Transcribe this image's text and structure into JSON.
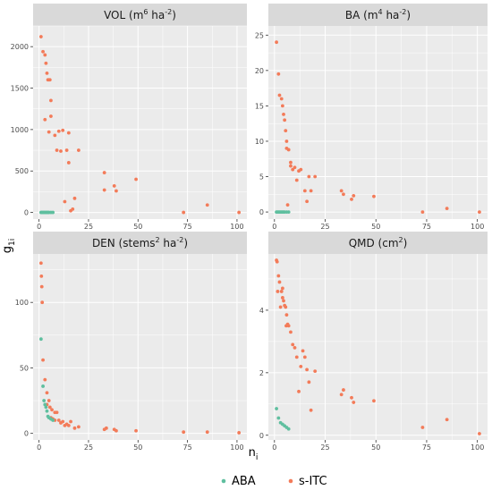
{
  "chart_data": [
    {
      "type": "scatter",
      "panel_title": [
        "VOL (m",
        "6",
        " ha",
        "-2",
        ")"
      ],
      "xlim": [
        -3,
        105
      ],
      "ylim": [
        -80,
        2250
      ],
      "xticks": [
        0,
        25,
        50,
        75,
        100
      ],
      "yticks": [
        0,
        500,
        1000,
        1500,
        2000
      ],
      "series": [
        {
          "name": "ABA",
          "x": [
            1,
            1.5,
            2,
            2.5,
            3,
            3.5,
            4,
            4.5,
            5,
            6,
            7
          ],
          "y": [
            0,
            0,
            0,
            0,
            0,
            0,
            0,
            0,
            0,
            0,
            0
          ]
        },
        {
          "name": "s-ITC",
          "x": [
            1,
            2,
            3,
            3.5,
            4,
            4.5,
            5,
            5.5,
            3,
            6,
            6,
            5,
            8,
            9,
            10,
            11,
            12,
            13,
            14,
            15,
            15,
            16,
            17,
            18,
            20,
            33,
            33,
            38,
            39,
            49,
            73,
            85,
            101
          ],
          "y": [
            2120,
            1940,
            1900,
            1800,
            1680,
            1600,
            1600,
            1600,
            1120,
            1350,
            1160,
            970,
            930,
            750,
            980,
            740,
            990,
            130,
            750,
            600,
            960,
            20,
            40,
            170,
            750,
            480,
            270,
            320,
            260,
            400,
            0,
            90,
            0
          ]
        }
      ]
    },
    {
      "type": "scatter",
      "panel_title": [
        "BA (m",
        "4",
        " ha",
        "-2",
        ")"
      ],
      "xlim": [
        -3,
        105
      ],
      "ylim": [
        -1,
        26.3
      ],
      "xticks": [
        0,
        25,
        50,
        75,
        100
      ],
      "yticks": [
        0,
        5,
        10,
        15,
        20,
        25
      ],
      "series": [
        {
          "name": "ABA",
          "x": [
            1,
            1.5,
            2,
            2.5,
            3,
            3.5,
            4,
            4.5,
            5,
            6,
            7
          ],
          "y": [
            0,
            0,
            0,
            0,
            0,
            0,
            0,
            0,
            0,
            0,
            0
          ]
        },
        {
          "name": "s-ITC",
          "x": [
            1,
            2,
            2.5,
            3.5,
            4,
            4.5,
            5,
            5.5,
            6,
            6,
            6.5,
            7,
            8,
            8,
            9,
            10,
            11,
            12,
            13,
            15,
            16,
            17,
            18,
            20,
            33,
            34,
            38,
            39,
            49,
            73,
            85,
            101
          ],
          "y": [
            24,
            19.5,
            16.5,
            16,
            15,
            13.8,
            13,
            11.5,
            10,
            9,
            1,
            8.8,
            7,
            6.5,
            6,
            6.3,
            4.5,
            5.8,
            6,
            3,
            1.5,
            5,
            3,
            5,
            3,
            2.5,
            1.8,
            2.3,
            2.2,
            0,
            0.5,
            0
          ]
        }
      ]
    },
    {
      "type": "scatter",
      "panel_title": [
        "DEN (stems",
        "2",
        " ha",
        "-2",
        ")"
      ],
      "xlim": [
        -3,
        105
      ],
      "ylim": [
        -5,
        137
      ],
      "xticks": [
        0,
        25,
        50,
        75,
        100
      ],
      "yticks": [
        0,
        50,
        100
      ],
      "series": [
        {
          "name": "ABA",
          "x": [
            1,
            2,
            2.5,
            3,
            3.5,
            4,
            4.5,
            5,
            6,
            7
          ],
          "y": [
            72,
            36,
            25,
            22,
            20,
            17,
            13,
            12,
            11,
            10
          ]
        },
        {
          "name": "s-ITC",
          "x": [
            1,
            1.2,
            1.4,
            1.6,
            2,
            3,
            4,
            4,
            5,
            5.5,
            6,
            6.5,
            7,
            8,
            8,
            9,
            10,
            11,
            12,
            13,
            14,
            15,
            16,
            18,
            20,
            33,
            34,
            38,
            39,
            49,
            73,
            85,
            101
          ],
          "y": [
            130,
            120,
            112,
            100,
            56,
            41,
            31,
            22,
            25,
            20,
            12,
            18,
            11,
            16,
            10,
            16,
            10,
            8,
            9,
            6,
            7,
            6,
            9,
            4,
            5,
            3,
            4,
            3,
            2,
            2,
            1,
            1,
            0.5
          ]
        }
      ]
    },
    {
      "type": "scatter",
      "panel_title": [
        "QMD (cm",
        "2",
        ")",
        "",
        ""
      ],
      "xlim": [
        -3,
        105
      ],
      "ylim": [
        -0.15,
        5.8
      ],
      "xticks": [
        0,
        25,
        50,
        75,
        100
      ],
      "yticks": [
        0,
        2,
        4
      ],
      "series": [
        {
          "name": "ABA",
          "x": [
            1,
            2,
            3,
            4,
            5,
            6,
            7
          ],
          "y": [
            0.85,
            0.55,
            0.4,
            0.35,
            0.3,
            0.25,
            0.2
          ]
        },
        {
          "name": "s-ITC",
          "x": [
            1,
            1.3,
            1.6,
            2,
            2.5,
            3,
            3.5,
            4,
            4,
            4.5,
            5,
            5.5,
            5.8,
            6,
            6.5,
            7,
            8,
            9,
            10,
            11,
            12,
            13,
            14,
            15,
            16,
            17,
            18,
            20,
            33,
            34,
            38,
            39,
            49,
            73,
            85,
            101
          ],
          "y": [
            5.6,
            5.55,
            4.6,
            5.1,
            4.9,
            4.1,
            4.6,
            4.7,
            4.4,
            4.3,
            4.15,
            4.1,
            3.5,
            3.85,
            3.55,
            3.5,
            3.3,
            2.9,
            2.8,
            2.5,
            1.4,
            2.2,
            2.7,
            2.5,
            2.1,
            1.7,
            0.8,
            2.05,
            1.3,
            1.45,
            1.2,
            1.05,
            1.1,
            0.25,
            0.5,
            0.05
          ]
        }
      ]
    }
  ],
  "y_axis_title": {
    "main": "g",
    "sub": "1i"
  },
  "x_axis_title": {
    "main": "n",
    "sub": "i"
  },
  "legend": [
    {
      "label": "ABA",
      "color": "#5fbf9f"
    },
    {
      "label": "s-ITC",
      "color": "#f37b59"
    }
  ],
  "colors": {
    "panel_bg": "#ebebeb",
    "grid": "#ffffff",
    "strip_bg": "#d9d9d9"
  }
}
